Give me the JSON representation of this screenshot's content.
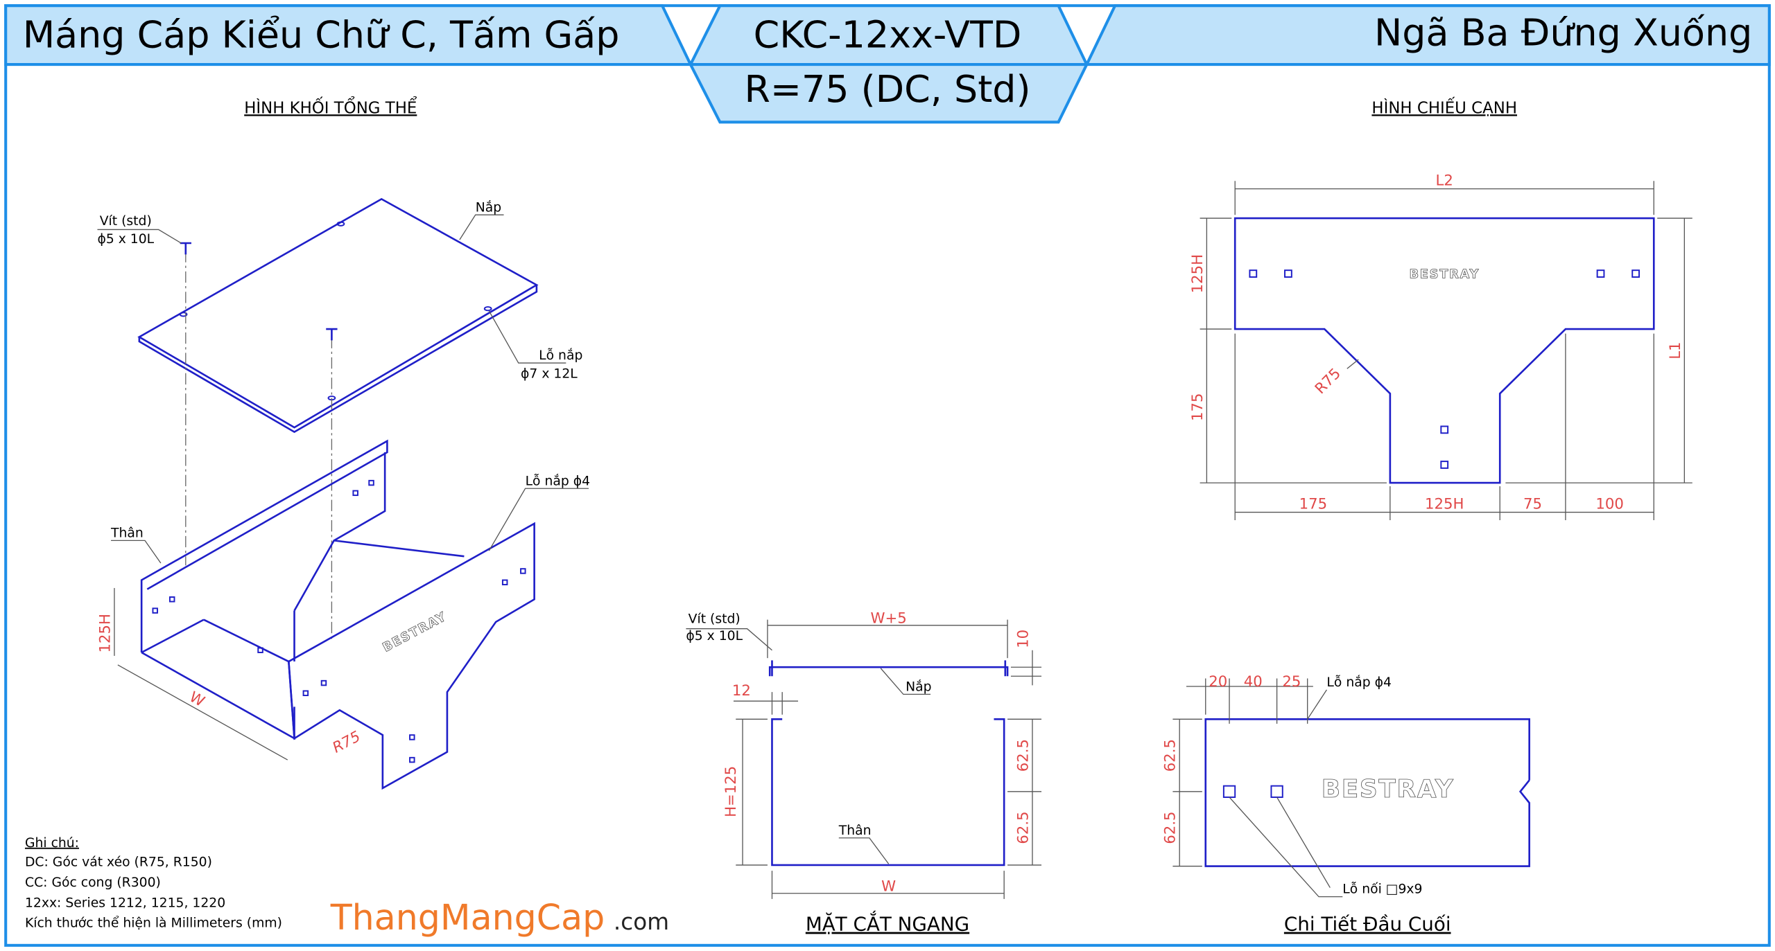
{
  "header": {
    "left_title": "Máng Cáp Kiểu Chữ C, Tấm Gấp",
    "code": "CKC-12xx-VTD",
    "subcode": "R=75 (DC, Std)",
    "right_title": "Ngã Ba Đứng Xuống"
  },
  "logo": "BESTRAY",
  "iso_view": {
    "title": "HÌNH KHỐI TỔNG THỂ",
    "screw": "Vít (std)",
    "screw_size": "ϕ5 x 10L",
    "lid": "Nắp",
    "lid_hole": "Lỗ nắp",
    "lid_hole_size": "ϕ7 x 12L",
    "body_hole": "Lỗ nắp ϕ4",
    "body": "Thân",
    "height": "125H",
    "width": "W",
    "radius": "R75"
  },
  "side_view": {
    "title": "HÌNH CHIẾU CẠNH",
    "l2": "L2",
    "l1": "L1",
    "left_dims": [
      "125H",
      "175"
    ],
    "radius": "R75",
    "bottom_dims": [
      "175",
      "125H",
      "75",
      "100"
    ]
  },
  "section_view": {
    "title": "MẶT CẮT NGANG",
    "screw": "Vít (std)",
    "screw_size": "ϕ5 x 10L",
    "top_width": "W+5",
    "lid_gap": "10",
    "lip": "12",
    "lid": "Nắp",
    "height": "H=125",
    "half_heights": [
      "62.5",
      "62.5"
    ],
    "body": "Thân",
    "width": "W"
  },
  "end_view": {
    "title": "Chi Tiết Đầu Cuối",
    "top_dims": [
      "20",
      "40",
      "25"
    ],
    "hole": "Lỗ nắp ϕ4",
    "half_heights": [
      "62.5",
      "62.5"
    ],
    "joint_hole": "Lỗ nối □9x9"
  },
  "notes": {
    "title": "Ghi chú:",
    "lines": [
      "DC: Góc vát xéo (R75, R150)",
      "CC: Góc cong (R300)",
      "12xx: Series 1212, 1215, 1220",
      "Kích thước thể hiện là Millimeters (mm)"
    ]
  },
  "brand": {
    "name": "ThangMangCap",
    "suffix": ".com"
  }
}
